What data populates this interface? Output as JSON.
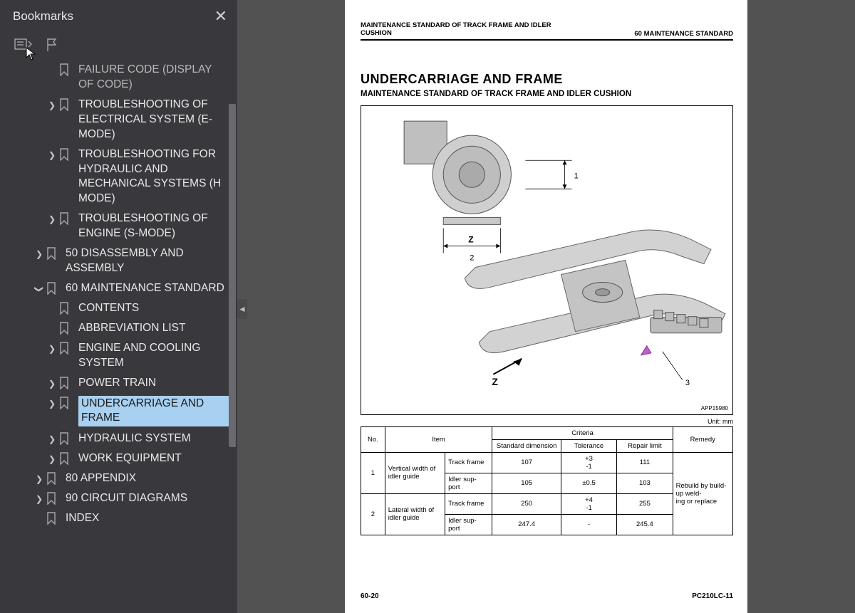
{
  "sidebar": {
    "title": "Bookmarks",
    "items": [
      {
        "level": 3,
        "chev": false,
        "label": "FAILURE CODE (DISPLAY OF CODE)",
        "cutoff": true
      },
      {
        "level": 3,
        "chev": true,
        "label": "TROUBLESHOOTING OF ELECTRICAL SYSTEM (E-MODE)"
      },
      {
        "level": 3,
        "chev": true,
        "label": "TROUBLESHOOTING FOR HYDRAULIC AND MECHANICAL SYSTEMS (H MODE)"
      },
      {
        "level": 3,
        "chev": true,
        "label": "TROUBLESHOOTING OF ENGINE (S-MODE)"
      },
      {
        "level": 2,
        "chev": true,
        "label": "50 DISASSEMBLY AND ASSEMBLY"
      },
      {
        "level": 2,
        "chev": "down",
        "label": "60 MAINTENANCE STANDARD"
      },
      {
        "level": 3,
        "chev": false,
        "label": "CONTENTS"
      },
      {
        "level": 3,
        "chev": false,
        "label": "ABBREVIATION LIST"
      },
      {
        "level": 3,
        "chev": true,
        "label": "ENGINE AND COOLING SYSTEM"
      },
      {
        "level": 3,
        "chev": true,
        "label": "POWER TRAIN"
      },
      {
        "level": 3,
        "chev": true,
        "label": "UNDERCARRIAGE AND FRAME",
        "selected": true
      },
      {
        "level": 3,
        "chev": true,
        "label": "HYDRAULIC SYSTEM"
      },
      {
        "level": 3,
        "chev": true,
        "label": "WORK EQUIPMENT"
      },
      {
        "level": 2,
        "chev": true,
        "label": "80 APPENDIX"
      },
      {
        "level": 2,
        "chev": true,
        "label": "90 CIRCUIT DIAGRAMS"
      },
      {
        "level": 2,
        "chev": false,
        "label": "INDEX"
      }
    ],
    "scrollbar": {
      "top_pct": 8,
      "height_pct": 62
    }
  },
  "page": {
    "header_left": "MAINTENANCE STANDARD OF TRACK FRAME AND IDLER CUSHION",
    "header_right": "60 MAINTENANCE STANDARD",
    "h1": "UNDERCARRIAGE AND FRAME",
    "h2": "MAINTENANCE STANDARD OF TRACK FRAME AND IDLER CUSHION",
    "figure_id": "APP15980",
    "unit_label": "Unit: mm",
    "table": {
      "headers": {
        "no": "No.",
        "item": "Item",
        "criteria": "Criteria",
        "std": "Standard dimension",
        "tol": "Tolerance",
        "rep": "Repair limit",
        "remedy": "Remedy"
      },
      "remedy_text": "Rebuild by build-up welding or replace",
      "rows": [
        {
          "no": "1",
          "item": "Vertical width of idler guide",
          "sub": "Track frame",
          "std": "107",
          "tol": "+3\n-1",
          "rep": "111"
        },
        {
          "no": "",
          "item": "",
          "sub": "Idler support",
          "std": "105",
          "tol": "±0.5",
          "rep": "103"
        },
        {
          "no": "2",
          "item": "Lateral width of idler guide",
          "sub": "Track frame",
          "std": "250",
          "tol": "+4\n-1",
          "rep": "255"
        },
        {
          "no": "",
          "item": "",
          "sub": "Idler support",
          "std": "247.4",
          "tol": "-",
          "rep": "245.4"
        }
      ]
    },
    "footer_left": "60-20",
    "footer_right": "PC210LC-11",
    "annotations": {
      "dim1": "1",
      "dim2": "2",
      "z1": "Z",
      "z2": "Z",
      "pt3": "3"
    }
  },
  "colors": {
    "sidebar_bg": "#38383d",
    "page_bg": "#ffffff",
    "gap_bg": "#525252",
    "text_light": "#e8e8e8",
    "highlight": "#a8d0f0",
    "border": "#000000"
  }
}
